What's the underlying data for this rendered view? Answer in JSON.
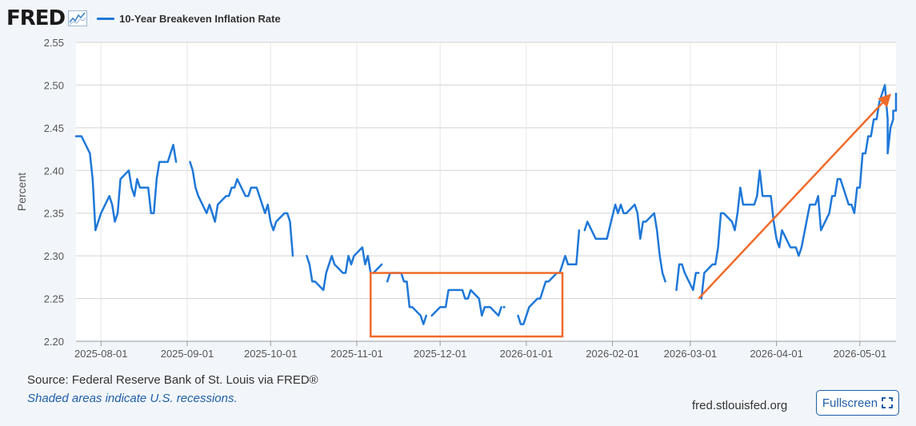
{
  "header": {
    "logo_text": "FRED",
    "logo_icon": "graph-icon",
    "series_label": "10-Year Breakeven Inflation Rate"
  },
  "chart_data": {
    "type": "line",
    "title": "",
    "xlabel": "",
    "ylabel": "Percent",
    "ylim": [
      2.2,
      2.55
    ],
    "yticks": [
      "2.20",
      "2.25",
      "2.30",
      "2.35",
      "2.40",
      "2.45",
      "2.50",
      "2.55"
    ],
    "xlim": [
      "2025-07-23",
      "2026-05-14"
    ],
    "xticks": [
      "2025-08-01",
      "2025-09-01",
      "2025-10-01",
      "2025-11-01",
      "2025-12-01",
      "2026-01-01",
      "2026-02-01",
      "2026-03-01",
      "2026-04-01",
      "2026-05-01"
    ],
    "grid": true,
    "line_color": "#1f78d8",
    "series": [
      {
        "name": "10-Year Breakeven Inflation Rate",
        "segments": [
          [
            [
              "2025-07-23",
              2.44
            ],
            [
              "2025-07-24",
              2.44
            ],
            [
              "2025-07-25",
              2.44
            ],
            [
              "2025-07-28",
              2.42
            ],
            [
              "2025-07-29",
              2.39
            ],
            [
              "2025-07-30",
              2.33
            ],
            [
              "2025-07-31",
              2.34
            ],
            [
              "2025-08-01",
              2.35
            ],
            [
              "2025-08-04",
              2.37
            ],
            [
              "2025-08-05",
              2.36
            ],
            [
              "2025-08-06",
              2.34
            ],
            [
              "2025-08-07",
              2.35
            ],
            [
              "2025-08-08",
              2.39
            ],
            [
              "2025-08-11",
              2.4
            ],
            [
              "2025-08-12",
              2.38
            ],
            [
              "2025-08-13",
              2.37
            ],
            [
              "2025-08-14",
              2.39
            ],
            [
              "2025-08-15",
              2.38
            ],
            [
              "2025-08-18",
              2.38
            ],
            [
              "2025-08-19",
              2.35
            ],
            [
              "2025-08-20",
              2.35
            ],
            [
              "2025-08-21",
              2.39
            ],
            [
              "2025-08-22",
              2.41
            ],
            [
              "2025-08-25",
              2.41
            ],
            [
              "2025-08-26",
              2.42
            ],
            [
              "2025-08-27",
              2.43
            ],
            [
              "2025-08-28",
              2.41
            ]
          ],
          [
            [
              "2025-09-02",
              2.41
            ],
            [
              "2025-09-03",
              2.4
            ],
            [
              "2025-09-04",
              2.38
            ],
            [
              "2025-09-05",
              2.37
            ],
            [
              "2025-09-08",
              2.35
            ],
            [
              "2025-09-09",
              2.36
            ],
            [
              "2025-09-10",
              2.35
            ],
            [
              "2025-09-11",
              2.34
            ],
            [
              "2025-09-12",
              2.36
            ],
            [
              "2025-09-15",
              2.37
            ],
            [
              "2025-09-16",
              2.37
            ],
            [
              "2025-09-17",
              2.38
            ],
            [
              "2025-09-18",
              2.38
            ],
            [
              "2025-09-19",
              2.39
            ],
            [
              "2025-09-22",
              2.37
            ],
            [
              "2025-09-23",
              2.37
            ],
            [
              "2025-09-24",
              2.38
            ],
            [
              "2025-09-25",
              2.38
            ],
            [
              "2025-09-26",
              2.38
            ],
            [
              "2025-09-29",
              2.35
            ],
            [
              "2025-09-30",
              2.36
            ],
            [
              "2025-10-01",
              2.34
            ],
            [
              "2025-10-02",
              2.33
            ],
            [
              "2025-10-03",
              2.34
            ],
            [
              "2025-10-06",
              2.35
            ],
            [
              "2025-10-07",
              2.35
            ],
            [
              "2025-10-08",
              2.34
            ],
            [
              "2025-10-09",
              2.3
            ]
          ],
          [
            [
              "2025-10-14",
              2.3
            ],
            [
              "2025-10-15",
              2.29
            ],
            [
              "2025-10-16",
              2.27
            ],
            [
              "2025-10-17",
              2.27
            ],
            [
              "2025-10-20",
              2.26
            ],
            [
              "2025-10-21",
              2.28
            ],
            [
              "2025-10-22",
              2.29
            ],
            [
              "2025-10-23",
              2.3
            ],
            [
              "2025-10-24",
              2.29
            ],
            [
              "2025-10-27",
              2.28
            ],
            [
              "2025-10-28",
              2.28
            ],
            [
              "2025-10-29",
              2.3
            ],
            [
              "2025-10-30",
              2.29
            ],
            [
              "2025-10-31",
              2.3
            ],
            [
              "2025-11-03",
              2.31
            ],
            [
              "2025-11-04",
              2.29
            ],
            [
              "2025-11-05",
              2.3
            ],
            [
              "2025-11-06",
              2.28
            ]
          ],
          [
            [
              "2025-11-07",
              2.28
            ],
            [
              "2025-11-10",
              2.29
            ]
          ],
          [
            [
              "2025-11-12",
              2.27
            ],
            [
              "2025-11-13",
              2.28
            ],
            [
              "2025-11-14",
              2.28
            ],
            [
              "2025-11-17",
              2.28
            ],
            [
              "2025-11-18",
              2.27
            ],
            [
              "2025-11-19",
              2.27
            ],
            [
              "2025-11-20",
              2.24
            ],
            [
              "2025-11-21",
              2.24
            ],
            [
              "2025-11-24",
              2.23
            ],
            [
              "2025-11-25",
              2.22
            ],
            [
              "2025-11-26",
              2.23
            ]
          ],
          [
            [
              "2025-11-28",
              2.23
            ],
            [
              "2025-12-01",
              2.24
            ],
            [
              "2025-12-02",
              2.24
            ],
            [
              "2025-12-03",
              2.24
            ],
            [
              "2025-12-04",
              2.26
            ],
            [
              "2025-12-05",
              2.26
            ],
            [
              "2025-12-08",
              2.26
            ],
            [
              "2025-12-09",
              2.26
            ],
            [
              "2025-12-10",
              2.25
            ],
            [
              "2025-12-11",
              2.25
            ],
            [
              "2025-12-12",
              2.26
            ],
            [
              "2025-12-15",
              2.25
            ],
            [
              "2025-12-16",
              2.23
            ],
            [
              "2025-12-17",
              2.24
            ],
            [
              "2025-12-18",
              2.24
            ],
            [
              "2025-12-19",
              2.24
            ],
            [
              "2025-12-22",
              2.23
            ],
            [
              "2025-12-23",
              2.24
            ]
          ],
          [
            [
              "2025-12-24",
              2.24
            ]
          ],
          [
            [
              "2025-12-29",
              2.23
            ],
            [
              "2025-12-30",
              2.22
            ],
            [
              "2025-12-31",
              2.22
            ],
            [
              "2026-01-02",
              2.24
            ],
            [
              "2026-01-05",
              2.25
            ],
            [
              "2026-01-06",
              2.25
            ],
            [
              "2026-01-07",
              2.26
            ],
            [
              "2026-01-08",
              2.27
            ],
            [
              "2026-01-09",
              2.27
            ],
            [
              "2026-01-12",
              2.28
            ],
            [
              "2026-01-13",
              2.28
            ],
            [
              "2026-01-14",
              2.29
            ],
            [
              "2026-01-15",
              2.3
            ],
            [
              "2026-01-16",
              2.29
            ],
            [
              "2026-01-19",
              2.29
            ],
            [
              "2026-01-20",
              2.33
            ]
          ],
          [
            [
              "2026-01-22",
              2.33
            ],
            [
              "2026-01-23",
              2.34
            ],
            [
              "2026-01-26",
              2.32
            ],
            [
              "2026-01-27",
              2.32
            ],
            [
              "2026-01-28",
              2.32
            ],
            [
              "2026-01-29",
              2.32
            ],
            [
              "2026-01-30",
              2.32
            ],
            [
              "2026-02-02",
              2.36
            ],
            [
              "2026-02-03",
              2.35
            ],
            [
              "2026-02-04",
              2.36
            ],
            [
              "2026-02-05",
              2.35
            ],
            [
              "2026-02-06",
              2.35
            ],
            [
              "2026-02-09",
              2.36
            ],
            [
              "2026-02-10",
              2.35
            ],
            [
              "2026-02-11",
              2.32
            ],
            [
              "2026-02-12",
              2.34
            ],
            [
              "2026-02-13",
              2.34
            ],
            [
              "2026-02-16",
              2.35
            ],
            [
              "2026-02-17",
              2.33
            ],
            [
              "2026-02-18",
              2.3
            ],
            [
              "2026-02-19",
              2.28
            ],
            [
              "2026-02-20",
              2.27
            ]
          ],
          [
            [
              "2026-02-24",
              2.26
            ],
            [
              "2026-02-25",
              2.29
            ],
            [
              "2026-02-26",
              2.29
            ],
            [
              "2026-02-27",
              2.28
            ],
            [
              "2026-03-02",
              2.26
            ],
            [
              "2026-03-03",
              2.28
            ],
            [
              "2026-03-04",
              2.28
            ]
          ],
          [
            [
              "2026-03-05",
              2.25
            ],
            [
              "2026-03-06",
              2.28
            ],
            [
              "2026-03-09",
              2.29
            ],
            [
              "2026-03-10",
              2.29
            ],
            [
              "2026-03-11",
              2.31
            ],
            [
              "2026-03-12",
              2.35
            ],
            [
              "2026-03-13",
              2.35
            ],
            [
              "2026-03-16",
              2.34
            ],
            [
              "2026-03-17",
              2.33
            ],
            [
              "2026-03-18",
              2.35
            ],
            [
              "2026-03-19",
              2.38
            ],
            [
              "2026-03-20",
              2.36
            ],
            [
              "2026-03-23",
              2.36
            ],
            [
              "2026-03-24",
              2.36
            ],
            [
              "2026-03-25",
              2.37
            ],
            [
              "2026-03-26",
              2.4
            ],
            [
              "2026-03-27",
              2.37
            ],
            [
              "2026-03-30",
              2.37
            ],
            [
              "2026-03-31",
              2.34
            ],
            [
              "2026-04-01",
              2.32
            ],
            [
              "2026-04-02",
              2.31
            ],
            [
              "2026-04-03",
              2.33
            ],
            [
              "2026-04-06",
              2.31
            ],
            [
              "2026-04-07",
              2.31
            ],
            [
              "2026-04-08",
              2.31
            ],
            [
              "2026-04-09",
              2.3
            ],
            [
              "2026-04-10",
              2.31
            ],
            [
              "2026-04-13",
              2.36
            ],
            [
              "2026-04-14",
              2.36
            ],
            [
              "2026-04-15",
              2.36
            ],
            [
              "2026-04-16",
              2.37
            ],
            [
              "2026-04-17",
              2.33
            ],
            [
              "2026-04-20",
              2.35
            ],
            [
              "2026-04-21",
              2.37
            ],
            [
              "2026-04-22",
              2.37
            ],
            [
              "2026-04-23",
              2.39
            ],
            [
              "2026-04-24",
              2.39
            ],
            [
              "2026-04-27",
              2.36
            ],
            [
              "2026-04-28",
              2.36
            ],
            [
              "2026-04-29",
              2.35
            ],
            [
              "2026-04-30",
              2.38
            ],
            [
              "2026-05-01",
              2.38
            ],
            [
              "2026-05-02",
              2.42
            ],
            [
              "2026-05-03",
              2.42
            ],
            [
              "2026-05-04",
              2.44
            ],
            [
              "2026-05-05",
              2.44
            ],
            [
              "2026-05-06",
              2.46
            ],
            [
              "2026-05-07",
              2.46
            ],
            [
              "2026-05-08",
              2.48
            ],
            [
              "2026-05-09",
              2.49
            ],
            [
              "2026-05-10",
              2.5
            ],
            [
              "2026-05-11",
              2.46
            ],
            [
              "2026-05-11",
              2.42
            ],
            [
              "2026-05-12",
              2.45
            ],
            [
              "2026-05-12",
              2.45
            ],
            [
              "2026-05-13",
              2.46
            ],
            [
              "2026-05-13",
              2.47
            ],
            [
              "2026-05-14",
              2.47
            ],
            [
              "2026-05-14",
              2.49
            ]
          ]
        ]
      }
    ],
    "annotations": [
      {
        "kind": "rectangle",
        "color": "#f06a2a",
        "x_from": "2025-11-06",
        "x_to": "2026-01-14",
        "y_from": 2.2,
        "y_to": 2.28
      },
      {
        "kind": "arrow",
        "color": "#f06a2a",
        "from": [
          "2026-03-04",
          2.25
        ],
        "to": [
          "2026-05-14",
          2.49
        ]
      }
    ]
  },
  "footer": {
    "source": "Source: Federal Reserve Bank of St. Louis via FRED®",
    "note": "Shaded areas indicate U.S. recessions.",
    "site": "fred.stlouisfed.org",
    "fullscreen_label": "Fullscreen",
    "fullscreen_icon": "expand-icon"
  }
}
